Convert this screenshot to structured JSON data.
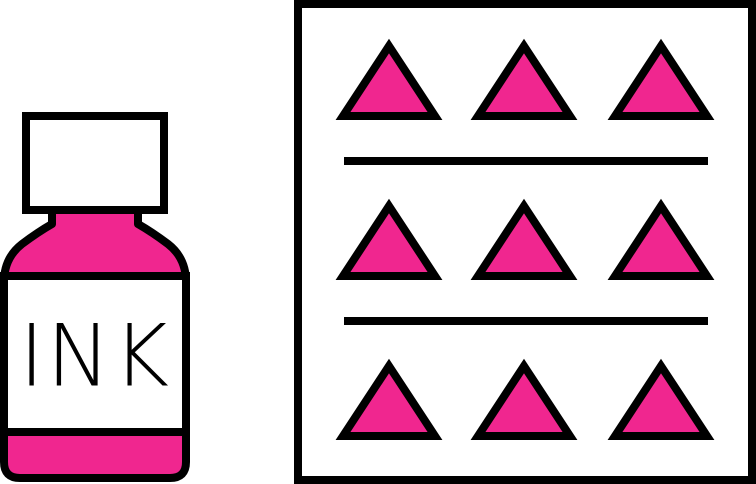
{
  "illustration": {
    "bottle": {
      "label_text": "INK",
      "ink_color": "#f0268f",
      "cap_color": "#ffffff",
      "outline_color": "#000000"
    },
    "sheet": {
      "symbol": "triangle-icon",
      "rows": 3,
      "columns": 3,
      "divider_lines": 2,
      "fill_color": "#f0268f",
      "outline_color": "#000000"
    }
  }
}
